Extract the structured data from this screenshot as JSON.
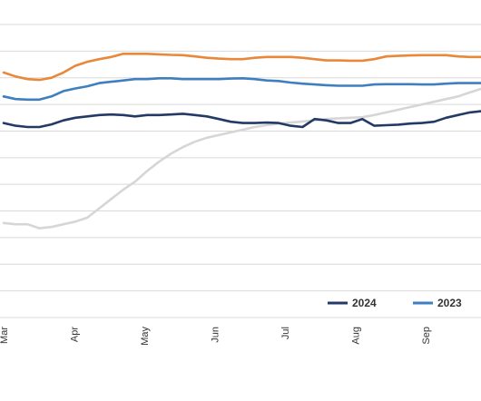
{
  "chart_data": {
    "type": "line",
    "title": "",
    "xlabel": "",
    "ylabel": "",
    "x_ticks": [
      "Mar",
      "Apr",
      "May",
      "Jun",
      "Jul",
      "Aug",
      "Sep"
    ],
    "x_range": [
      0,
      7.05
    ],
    "y_range": [
      0,
      11
    ],
    "grid": true,
    "legend_placement": "bottom-right",
    "series": [
      {
        "name": "2024",
        "color": "#243a66",
        "x": [
          0,
          0.17,
          0.34,
          0.51,
          0.68,
          0.85,
          1.02,
          1.19,
          1.36,
          1.53,
          1.7,
          1.87,
          2.04,
          2.21,
          2.38,
          2.55,
          2.72,
          2.89,
          3.06,
          3.23,
          3.4,
          3.57,
          3.74,
          3.91,
          4.08,
          4.25,
          4.42,
          4.59,
          4.76,
          4.93,
          5.1,
          5.27,
          5.44,
          5.61,
          5.78,
          5.95,
          6.12,
          6.29,
          6.46,
          6.63,
          6.8,
          6.97,
          7.05
        ],
        "values": [
          7.3,
          7.2,
          7.15,
          7.15,
          7.25,
          7.4,
          7.5,
          7.55,
          7.6,
          7.62,
          7.6,
          7.55,
          7.6,
          7.6,
          7.62,
          7.65,
          7.6,
          7.55,
          7.45,
          7.35,
          7.3,
          7.3,
          7.32,
          7.3,
          7.2,
          7.15,
          7.45,
          7.4,
          7.3,
          7.3,
          7.45,
          7.2,
          7.22,
          7.24,
          7.28,
          7.3,
          7.35,
          7.5,
          7.6,
          7.7,
          7.75,
          7.8,
          7.82
        ]
      },
      {
        "name": "2023",
        "color": "#3d7fbf",
        "x": [
          0,
          0.17,
          0.34,
          0.51,
          0.68,
          0.85,
          1.02,
          1.19,
          1.36,
          1.53,
          1.7,
          1.87,
          2.04,
          2.21,
          2.38,
          2.55,
          2.72,
          2.89,
          3.06,
          3.23,
          3.4,
          3.57,
          3.74,
          3.91,
          4.08,
          4.25,
          4.42,
          4.59,
          4.76,
          4.93,
          5.1,
          5.27,
          5.44,
          5.61,
          5.78,
          5.95,
          6.12,
          6.29,
          6.46,
          6.63,
          6.8,
          6.97,
          7.05
        ],
        "values": [
          8.3,
          8.2,
          8.18,
          8.18,
          8.3,
          8.5,
          8.6,
          8.68,
          8.8,
          8.85,
          8.9,
          8.95,
          8.95,
          8.98,
          8.98,
          8.95,
          8.95,
          8.95,
          8.95,
          8.97,
          8.98,
          8.95,
          8.9,
          8.88,
          8.82,
          8.78,
          8.75,
          8.72,
          8.7,
          8.7,
          8.7,
          8.75,
          8.76,
          8.76,
          8.76,
          8.75,
          8.75,
          8.78,
          8.8,
          8.8,
          8.8,
          8.8,
          8.8
        ]
      },
      {
        "name": "",
        "color": "#e8883a",
        "x": [
          0,
          0.17,
          0.34,
          0.51,
          0.68,
          0.85,
          1.02,
          1.19,
          1.36,
          1.53,
          1.7,
          1.87,
          2.04,
          2.21,
          2.38,
          2.55,
          2.72,
          2.89,
          3.06,
          3.23,
          3.4,
          3.57,
          3.74,
          3.91,
          4.08,
          4.25,
          4.42,
          4.59,
          4.76,
          4.93,
          5.1,
          5.27,
          5.44,
          5.61,
          5.78,
          5.95,
          6.12,
          6.29,
          6.46,
          6.63,
          6.8,
          6.97,
          7.05
        ],
        "values": [
          9.2,
          9.05,
          8.95,
          8.92,
          9.0,
          9.2,
          9.45,
          9.6,
          9.7,
          9.78,
          9.9,
          9.9,
          9.9,
          9.88,
          9.86,
          9.85,
          9.8,
          9.75,
          9.72,
          9.7,
          9.7,
          9.75,
          9.78,
          9.78,
          9.78,
          9.75,
          9.7,
          9.65,
          9.65,
          9.64,
          9.64,
          9.7,
          9.8,
          9.82,
          9.84,
          9.85,
          9.85,
          9.85,
          9.8,
          9.78,
          9.78,
          9.78,
          9.78
        ]
      },
      {
        "name": "",
        "color": "#d6d6d6",
        "x": [
          0,
          0.17,
          0.34,
          0.51,
          0.68,
          0.85,
          1.02,
          1.19,
          1.36,
          1.53,
          1.7,
          1.87,
          2.04,
          2.21,
          2.38,
          2.55,
          2.72,
          2.89,
          3.06,
          3.23,
          3.4,
          3.57,
          3.74,
          3.91,
          4.08,
          4.25,
          4.42,
          4.59,
          4.76,
          4.93,
          5.1,
          5.27,
          5.44,
          5.61,
          5.78,
          5.95,
          6.12,
          6.29,
          6.46,
          6.63,
          6.8,
          6.97,
          7.05
        ],
        "values": [
          3.55,
          3.5,
          3.5,
          3.35,
          3.4,
          3.5,
          3.6,
          3.75,
          4.1,
          4.45,
          4.8,
          5.1,
          5.5,
          5.85,
          6.15,
          6.4,
          6.6,
          6.75,
          6.85,
          6.95,
          7.05,
          7.15,
          7.22,
          7.28,
          7.32,
          7.36,
          7.4,
          7.45,
          7.48,
          7.5,
          7.52,
          7.6,
          7.7,
          7.8,
          7.9,
          8.0,
          8.1,
          8.2,
          8.3,
          8.45,
          8.6,
          8.75,
          8.8
        ]
      }
    ]
  }
}
